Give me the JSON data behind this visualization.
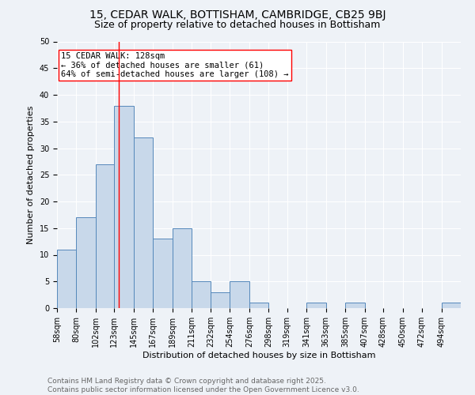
{
  "title": "15, CEDAR WALK, BOTTISHAM, CAMBRIDGE, CB25 9BJ",
  "subtitle": "Size of property relative to detached houses in Bottisham",
  "xlabel": "Distribution of detached houses by size in Bottisham",
  "ylabel": "Number of detached properties",
  "bar_color": "#c8d8ea",
  "bar_edge_color": "#5588bb",
  "bin_labels": [
    "58sqm",
    "80sqm",
    "102sqm",
    "123sqm",
    "145sqm",
    "167sqm",
    "189sqm",
    "211sqm",
    "232sqm",
    "254sqm",
    "276sqm",
    "298sqm",
    "319sqm",
    "341sqm",
    "363sqm",
    "385sqm",
    "407sqm",
    "428sqm",
    "450sqm",
    "472sqm",
    "494sqm"
  ],
  "bar_heights": [
    11,
    17,
    27,
    38,
    32,
    13,
    15,
    5,
    3,
    5,
    1,
    0,
    0,
    1,
    0,
    1,
    0,
    0,
    0,
    0,
    1
  ],
  "bin_edges": [
    58,
    80,
    102,
    123,
    145,
    167,
    189,
    211,
    232,
    254,
    276,
    298,
    319,
    341,
    363,
    385,
    407,
    428,
    450,
    472,
    494,
    516
  ],
  "vline_x": 128,
  "annotation_text": "15 CEDAR WALK: 128sqm\n← 36% of detached houses are smaller (61)\n64% of semi-detached houses are larger (108) →",
  "annotation_box_color": "white",
  "annotation_box_edge_color": "red",
  "vline_color": "red",
  "ylim": [
    0,
    50
  ],
  "yticks": [
    0,
    5,
    10,
    15,
    20,
    25,
    30,
    35,
    40,
    45,
    50
  ],
  "footer_text": "Contains HM Land Registry data © Crown copyright and database right 2025.\nContains public sector information licensed under the Open Government Licence v3.0.",
  "background_color": "#eef2f7",
  "grid_color": "white",
  "title_fontsize": 10,
  "subtitle_fontsize": 9,
  "axis_label_fontsize": 8,
  "tick_fontsize": 7,
  "annotation_fontsize": 7.5,
  "footer_fontsize": 6.5
}
